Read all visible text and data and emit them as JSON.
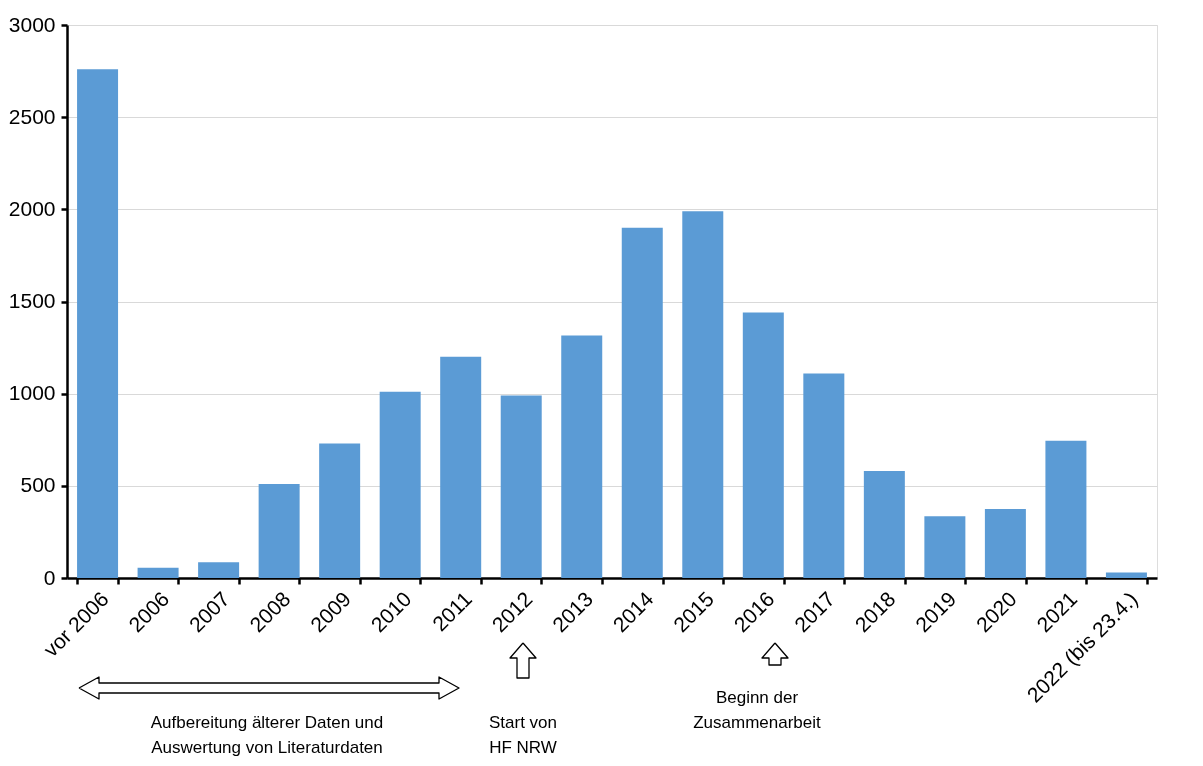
{
  "chart_data": {
    "type": "bar",
    "categories": [
      "vor 2006",
      "2006",
      "2007",
      "2008",
      "2009",
      "2010",
      "2011",
      "2012",
      "2013",
      "2014",
      "2015",
      "2016",
      "2017",
      "2018",
      "2019",
      "2020",
      "2021",
      "2022 (bis 23.4.)"
    ],
    "values": [
      2760,
      55,
      85,
      510,
      730,
      1010,
      1200,
      990,
      1315,
      1900,
      1990,
      1440,
      1110,
      580,
      335,
      375,
      745,
      30
    ],
    "color": "#5b9bd5",
    "ylim": [
      0,
      3000
    ],
    "yticks": [
      0,
      500,
      1000,
      1500,
      2000,
      2500,
      3000
    ],
    "grid": "y",
    "annotations": [
      "Aufbereitung älterer Daten und\nAuswertung von Literaturdaten",
      "Start von\nHF NRW",
      "Beginn der\nZusammenarbeit"
    ]
  }
}
